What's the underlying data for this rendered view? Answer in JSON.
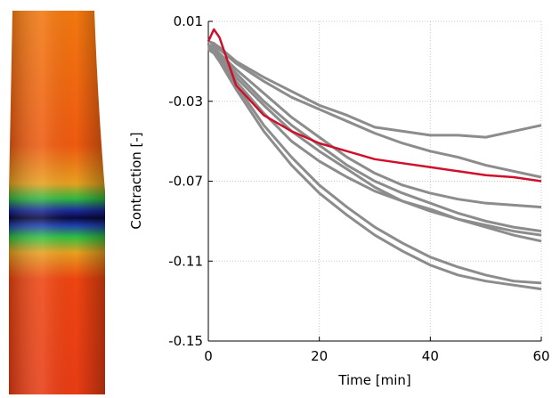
{
  "chart_data": {
    "type": "line",
    "xlabel": "Time [min]",
    "ylabel": "Contraction [-]",
    "xlim": [
      0,
      60
    ],
    "xticks": [
      0,
      20,
      40,
      60
    ],
    "ylim": [
      -0.15,
      0.01
    ],
    "yticks": [
      0.01,
      -0.03,
      -0.07,
      -0.11,
      -0.15
    ],
    "grid": true,
    "x": [
      0,
      1,
      2,
      5,
      10,
      15,
      20,
      25,
      30,
      35,
      40,
      45,
      50,
      55,
      60
    ],
    "series": [
      {
        "color": "#8c8c8c",
        "values": [
          0,
          -0.001,
          -0.003,
          -0.01,
          -0.018,
          -0.025,
          -0.032,
          -0.037,
          -0.043,
          -0.045,
          -0.047,
          -0.047,
          -0.048,
          -0.045,
          -0.042
        ]
      },
      {
        "color": "#8c8c8c",
        "values": [
          -0.002,
          -0.002,
          -0.004,
          -0.011,
          -0.02,
          -0.028,
          -0.034,
          -0.04,
          -0.046,
          -0.051,
          -0.055,
          -0.058,
          -0.062,
          -0.065,
          -0.068
        ]
      },
      {
        "color": "#8c8c8c",
        "values": [
          -0.002,
          -0.003,
          -0.006,
          -0.014,
          -0.026,
          -0.038,
          -0.048,
          -0.058,
          -0.066,
          -0.072,
          -0.076,
          -0.079,
          -0.081,
          -0.082,
          -0.083
        ]
      },
      {
        "color": "#8c8c8c",
        "values": [
          -0.003,
          -0.004,
          -0.007,
          -0.016,
          -0.03,
          -0.042,
          -0.052,
          -0.062,
          -0.07,
          -0.076,
          -0.081,
          -0.086,
          -0.09,
          -0.093,
          -0.095
        ]
      },
      {
        "color": "#8c8c8c",
        "values": [
          -0.003,
          -0.004,
          -0.008,
          -0.018,
          -0.032,
          -0.045,
          -0.055,
          -0.064,
          -0.073,
          -0.08,
          -0.085,
          -0.089,
          -0.093,
          -0.097,
          -0.1
        ]
      },
      {
        "color": "#8c8c8c",
        "values": [
          -0.003,
          -0.005,
          -0.008,
          -0.02,
          -0.036,
          -0.05,
          -0.06,
          -0.068,
          -0.075,
          -0.08,
          -0.084,
          -0.089,
          -0.092,
          -0.095,
          -0.097
        ]
      },
      {
        "color": "#8c8c8c",
        "values": [
          -0.004,
          -0.005,
          -0.009,
          -0.022,
          -0.042,
          -0.058,
          -0.072,
          -0.083,
          -0.093,
          -0.101,
          -0.108,
          -0.113,
          -0.117,
          -0.12,
          -0.121
        ]
      },
      {
        "color": "#8c8c8c",
        "values": [
          -0.004,
          -0.006,
          -0.01,
          -0.024,
          -0.045,
          -0.062,
          -0.076,
          -0.087,
          -0.097,
          -0.105,
          -0.112,
          -0.117,
          -0.12,
          -0.122,
          -0.124
        ]
      },
      {
        "color": "#d0102a",
        "values": [
          0,
          0.006,
          0.002,
          -0.022,
          -0.037,
          -0.045,
          -0.051,
          -0.055,
          -0.059,
          -0.061,
          -0.063,
          -0.065,
          -0.067,
          -0.068,
          -0.07
        ]
      }
    ]
  }
}
